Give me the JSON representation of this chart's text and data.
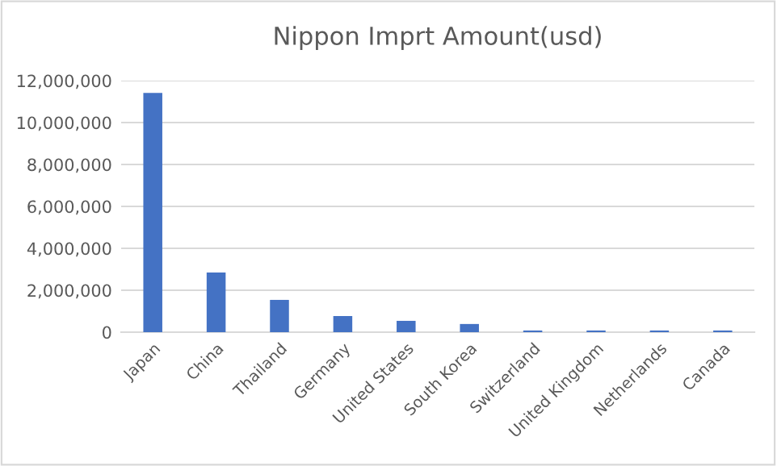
{
  "chart_data": {
    "type": "bar",
    "title": "Nippon Imprt Amount(usd)",
    "categories": [
      "Japan",
      "China",
      "Thailand",
      "Germany",
      "United States",
      "South Korea",
      "Switzerland",
      "United Kingdom",
      "Netherlands",
      "Canada"
    ],
    "values": [
      11410000,
      2850000,
      1540000,
      770000,
      540000,
      390000,
      80000,
      80000,
      80000,
      80000
    ],
    "color": "#4472c4",
    "ylim": [
      0,
      12000000
    ],
    "yticks": [
      {
        "value": 0,
        "label": "0"
      },
      {
        "value": 2000000,
        "label": "2,000,000"
      },
      {
        "value": 4000000,
        "label": "4,000,000"
      },
      {
        "value": 6000000,
        "label": "6,000,000"
      },
      {
        "value": 8000000,
        "label": "8,000,000"
      },
      {
        "value": 10000000,
        "label": "10,000,000"
      },
      {
        "value": 12000000,
        "label": "12,000,000"
      }
    ],
    "grid": "y"
  }
}
